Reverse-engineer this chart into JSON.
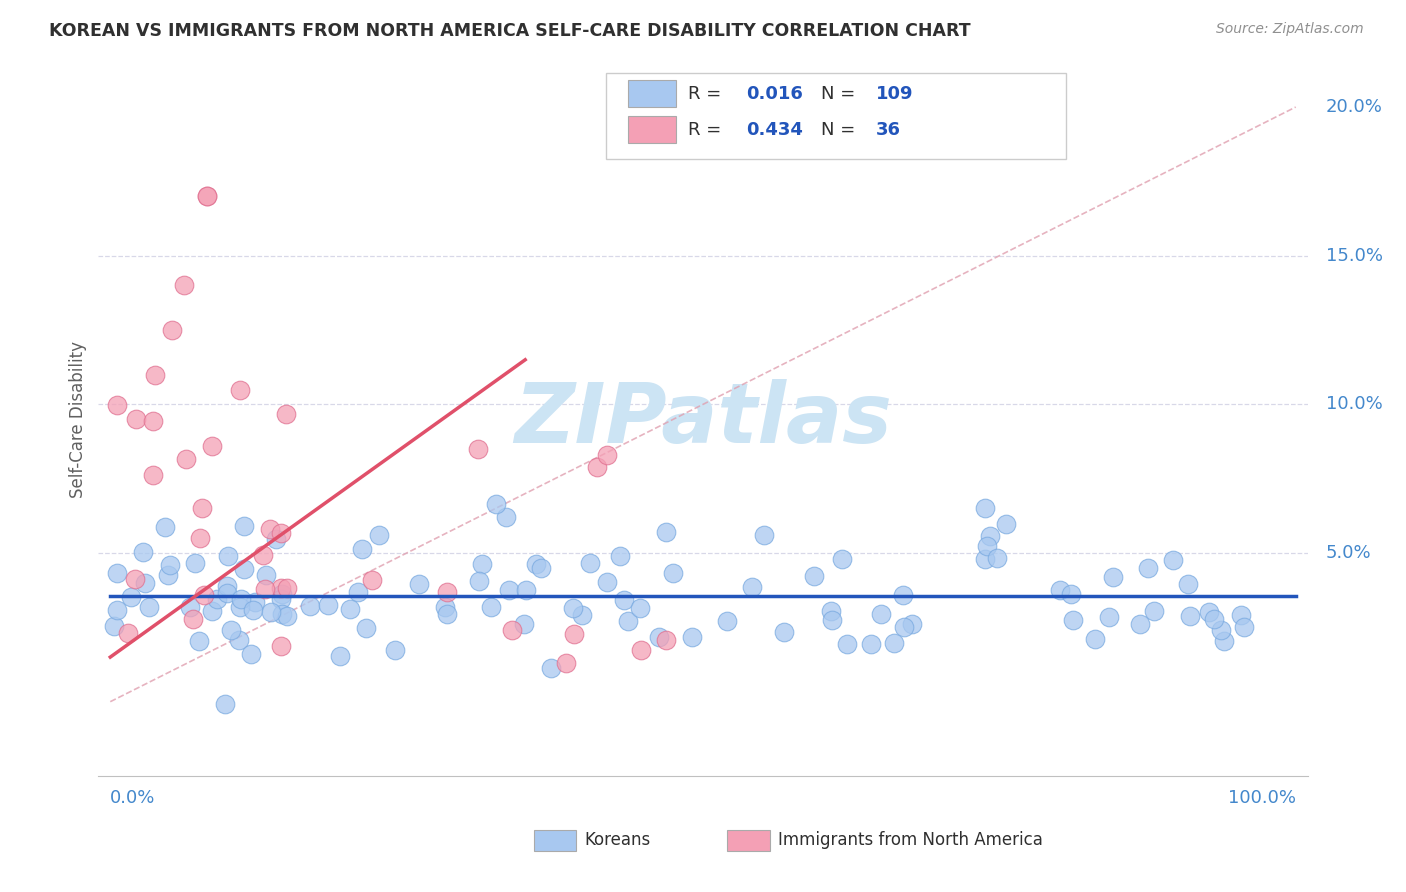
{
  "title": "KOREAN VS IMMIGRANTS FROM NORTH AMERICA SELF-CARE DISABILITY CORRELATION CHART",
  "source": "Source: ZipAtlas.com",
  "ylabel": "Self-Care Disability",
  "ytick_vals": [
    0.0,
    0.05,
    0.1,
    0.15,
    0.2
  ],
  "ytick_labels": [
    "",
    "5.0%",
    "10.0%",
    "15.0%",
    "20.0%"
  ],
  "xlim": [
    -0.01,
    1.01
  ],
  "ylim": [
    -0.025,
    0.215
  ],
  "legend_korean_R": "0.016",
  "legend_korean_N": "109",
  "legend_immigrant_R": "0.434",
  "legend_immigrant_N": "36",
  "korean_color": "#a8c8f0",
  "korean_edge_color": "#7aaae0",
  "immigrant_color": "#f4a0b5",
  "immigrant_edge_color": "#e07090",
  "korean_line_color": "#2255bb",
  "immigrant_line_color": "#e0506a",
  "dash_line_color": "#e0a0b0",
  "grid_color": "#d8d8e8",
  "watermark_color": "#cce4f4",
  "title_color": "#303030",
  "source_color": "#909090",
  "axis_label_color": "#606060",
  "tick_color": "#4488cc",
  "legend_text_color": "#303030",
  "legend_val_color": "#2255bb",
  "bottom_legend_text_color": "#303030"
}
